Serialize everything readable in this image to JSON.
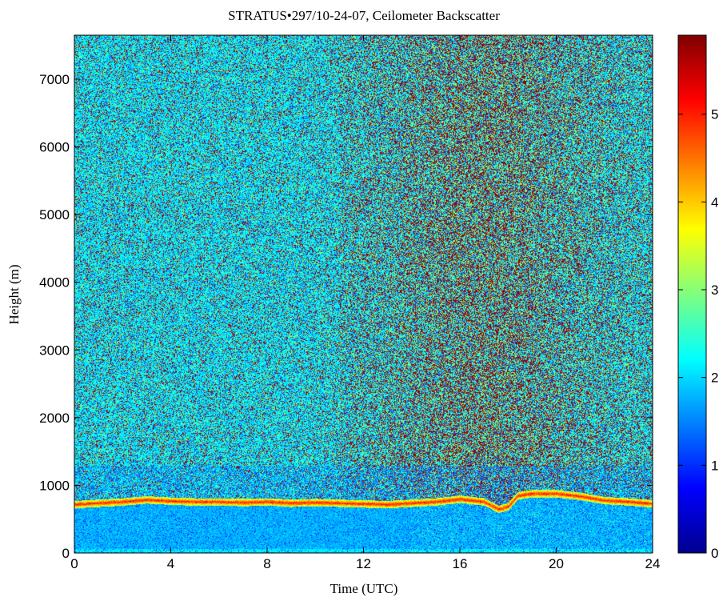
{
  "chart_data": {
    "type": "heatmap",
    "title": "STRATUS•297/10-24-07, Ceilometer Backscatter",
    "xlabel": "Time (UTC)",
    "ylabel": "Height (m)",
    "xlim": [
      0,
      24
    ],
    "ylim": [
      0,
      7650
    ],
    "x_ticks": [
      "0",
      "4",
      "8",
      "12",
      "16",
      "20",
      "24"
    ],
    "y_ticks": [
      "0",
      "1000",
      "2000",
      "3000",
      "4000",
      "5000",
      "6000",
      "7000"
    ],
    "colorbar": {
      "range": [
        0,
        5.9
      ],
      "ticks": [
        "0",
        "1",
        "2",
        "3",
        "4",
        "5"
      ],
      "colormap": "jet"
    },
    "cloud_base_layer": {
      "time_utc": [
        0,
        1,
        2,
        3,
        4,
        5,
        6,
        7,
        8,
        9,
        10,
        11,
        12,
        13,
        14,
        15,
        16,
        17,
        17.6,
        18,
        18.4,
        19,
        20,
        21,
        22,
        23,
        24
      ],
      "height_m": [
        720,
        740,
        760,
        790,
        770,
        760,
        760,
        750,
        760,
        740,
        750,
        740,
        730,
        720,
        740,
        760,
        800,
        760,
        650,
        690,
        850,
        880,
        880,
        840,
        780,
        760,
        730
      ],
      "value": 5
    },
    "background_noise": {
      "description_levels": [
        {
          "time_range": [
            0,
            11
          ],
          "typical_value": 2.0
        },
        {
          "time_range": [
            11,
            24
          ],
          "typical_value": 2.8
        }
      ]
    },
    "near_surface_value": 1.8
  }
}
